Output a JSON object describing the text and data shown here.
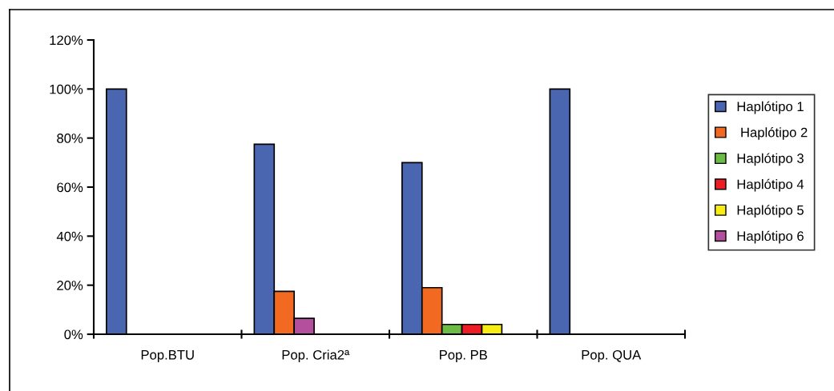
{
  "chart_data": {
    "type": "bar",
    "categories": [
      "Pop.BTU",
      "Pop. Cria2ª",
      "Pop. PB",
      "Pop. QUA"
    ],
    "series": [
      {
        "name": "Haplótipo 1",
        "color": "#4a66b0",
        "values": [
          100,
          77.5,
          70,
          100
        ]
      },
      {
        "name": " Haplótipo 2",
        "color": "#f26a21",
        "values": [
          null,
          17.5,
          19,
          null
        ]
      },
      {
        "name": "Haplótipo 3",
        "color": "#6cbb45",
        "values": [
          null,
          null,
          4,
          null
        ]
      },
      {
        "name": "Haplótipo 4",
        "color": "#ee1c24",
        "values": [
          null,
          null,
          4,
          null
        ]
      },
      {
        "name": "Haplótipo 5",
        "color": "#f7ec13",
        "values": [
          null,
          null,
          4,
          null
        ]
      },
      {
        "name": "Haplótipo 6",
        "color": "#b44f9d",
        "values": [
          null,
          6.5,
          null,
          null
        ]
      }
    ],
    "ylim": [
      0,
      120
    ],
    "yticks": [
      {
        "value": 0,
        "label": "0%"
      },
      {
        "value": 20,
        "label": "20%"
      },
      {
        "value": 40,
        "label": "40%"
      },
      {
        "value": 60,
        "label": "60%"
      },
      {
        "value": 80,
        "label": "80%"
      },
      {
        "value": 100,
        "label": "100%"
      },
      {
        "value": 120,
        "label": "120%"
      }
    ],
    "legend": "right"
  }
}
